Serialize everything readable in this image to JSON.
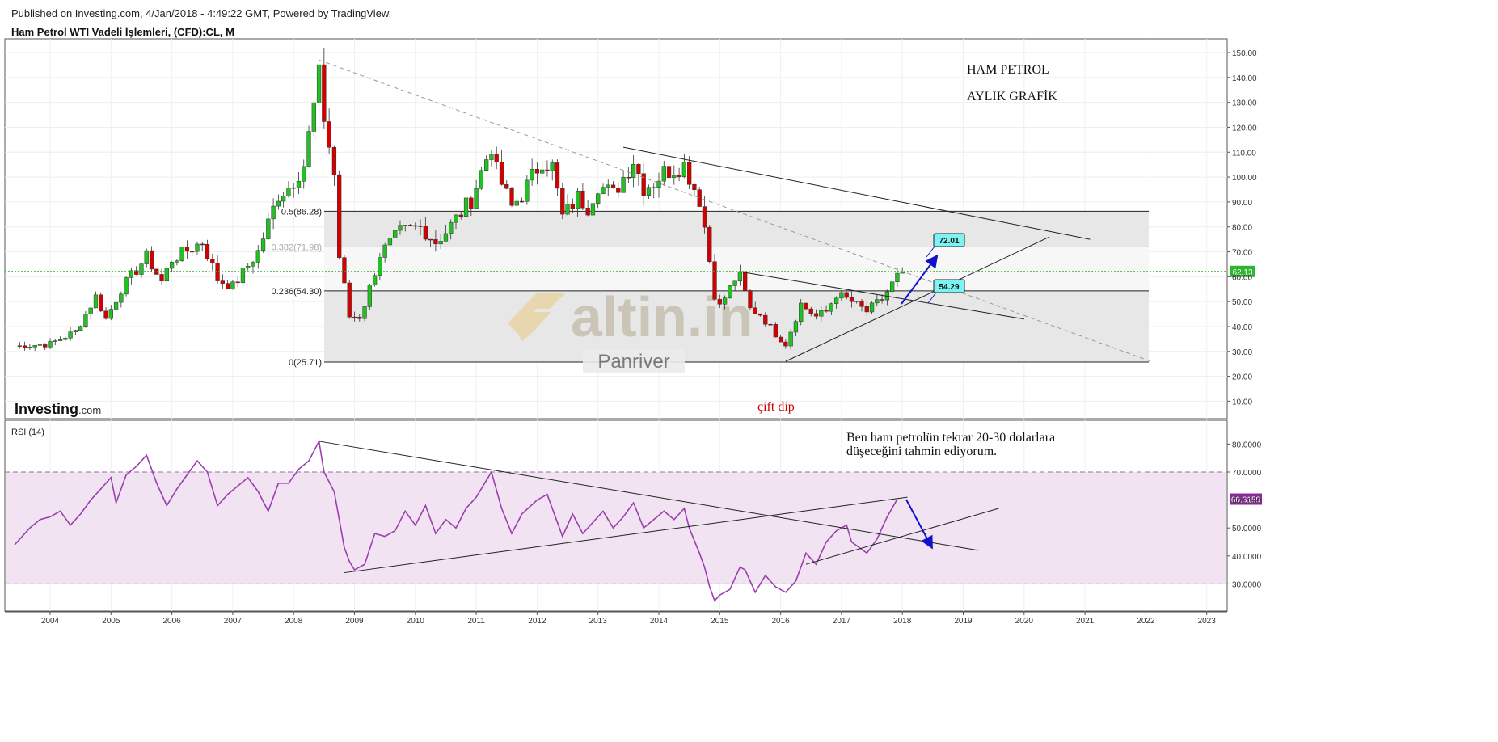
{
  "header": {
    "published": "Published on Investing.com, 4/Jan/2018 - 4:49:22 GMT, Powered by TradingView.",
    "instrument": "Ham Petrol WTI Vadeli İşlemleri, (CFD):CL, M"
  },
  "branding": {
    "investing_logo": "Investing",
    "investing_logo_suffix": ".com",
    "watermark": "altin.in",
    "watermark_sub": "Panriver"
  },
  "annotations": {
    "title_line1": "HAM PETROL",
    "title_line2": "AYLIK GRAFİK",
    "cift_dip": "çift dip",
    "rsi_note_line1": "Ben ham petrolün tekrar 20-30 dolarlara",
    "rsi_note_line2": "düşeceğini tahmin ediyorum.",
    "target_label_upper": "72.01",
    "target_label_lower": "54.29"
  },
  "colors": {
    "up_candle": "#22c022",
    "down_candle": "#d40000",
    "current_price_line": "#33aa33",
    "rsi_line": "#9b3fae",
    "rsi_band": "#f2e3f2",
    "fib_band": "#e7e7e7",
    "arrow": "#1111cc",
    "annotation_red": "#cc0000",
    "target_label_bg": "#7df4f4"
  },
  "chart_data": [
    {
      "type": "candlestick",
      "title": "Ham Petrol WTI Vadeli İşlemleri, (CFD):CL, M",
      "x_axis_labels": [
        "2004",
        "2005",
        "2006",
        "2007",
        "2008",
        "2009",
        "2010",
        "2011",
        "2012",
        "2013",
        "2014",
        "2015",
        "2016",
        "2017",
        "2018",
        "2019",
        "2020",
        "2021",
        "2022",
        "2023"
      ],
      "y_ticks": [
        "150.00",
        "140.00",
        "130.00",
        "120.00",
        "110.00",
        "100.00",
        "90.00",
        "80.00",
        "70.00",
        "60.00",
        "50.00",
        "40.00",
        "30.00",
        "20.00",
        "10.00"
      ],
      "ylim": [
        10,
        152
      ],
      "current_price": "62.13",
      "fibonacci_levels": [
        {
          "label": "0.5(86.28)",
          "value": 86.28
        },
        {
          "label": "0.382(71.98)",
          "value": 71.98
        },
        {
          "label": "0.236(54.30)",
          "value": 54.3
        },
        {
          "label": "0(25.71)",
          "value": 25.71
        }
      ],
      "close_path": [
        [
          "2003-06",
          32
        ],
        [
          "2004-01",
          33
        ],
        [
          "2004-06",
          38
        ],
        [
          "2004-10",
          52
        ],
        [
          "2004-12",
          43
        ],
        [
          "2005-03",
          55
        ],
        [
          "2005-08",
          68
        ],
        [
          "2005-11",
          58
        ],
        [
          "2006-01",
          67
        ],
        [
          "2006-07",
          74
        ],
        [
          "2006-10",
          59
        ],
        [
          "2007-01",
          56
        ],
        [
          "2007-06",
          70
        ],
        [
          "2007-10",
          93
        ],
        [
          "2007-12",
          96
        ],
        [
          "2008-03",
          105
        ],
        [
          "2008-06",
          140
        ],
        [
          "2008-07",
          124
        ],
        [
          "2008-09",
          101
        ],
        [
          "2008-10",
          68
        ],
        [
          "2008-12",
          44
        ],
        [
          "2009-02",
          44
        ],
        [
          "2009-03",
          49
        ],
        [
          "2009-06",
          69
        ],
        [
          "2009-10",
          78
        ],
        [
          "2010-02",
          80
        ],
        [
          "2010-05",
          74
        ],
        [
          "2010-07",
          78
        ],
        [
          "2010-12",
          91
        ],
        [
          "2011-04",
          113
        ],
        [
          "2011-05",
          102
        ],
        [
          "2011-08",
          88
        ],
        [
          "2011-10",
          93
        ],
        [
          "2012-02",
          107
        ],
        [
          "2012-04",
          104
        ],
        [
          "2012-06",
          84
        ],
        [
          "2012-09",
          92
        ],
        [
          "2012-11",
          88
        ],
        [
          "2013-01",
          97
        ],
        [
          "2013-04",
          93
        ],
        [
          "2013-08",
          107
        ],
        [
          "2013-10",
          96
        ],
        [
          "2013-12",
          98
        ],
        [
          "2014-02",
          102
        ],
        [
          "2014-06",
          105
        ],
        [
          "2014-09",
          91
        ],
        [
          "2014-10",
          80
        ],
        [
          "2014-12",
          53
        ],
        [
          "2015-01",
          48
        ],
        [
          "2015-04",
          59
        ],
        [
          "2015-05",
          60
        ],
        [
          "2015-07",
          47
        ],
        [
          "2015-09",
          45
        ],
        [
          "2015-12",
          37
        ],
        [
          "2016-02",
          33
        ],
        [
          "2016-05",
          49
        ],
        [
          "2016-08",
          44
        ],
        [
          "2016-10",
          46
        ],
        [
          "2016-12",
          53
        ],
        [
          "2017-03",
          50
        ],
        [
          "2017-06",
          46
        ],
        [
          "2017-09",
          51
        ],
        [
          "2017-12",
          60
        ],
        [
          "2018-01",
          62
        ]
      ],
      "trendlines": [
        {
          "from": [
            "2008-06",
            147
          ],
          "to": [
            "2022-02",
            26
          ],
          "style": "dashed"
        },
        {
          "from": [
            "2013-06",
            112
          ],
          "to": [
            "2021-02",
            75
          ],
          "style": "solid"
        },
        {
          "from": [
            "2015-05",
            62
          ],
          "to": [
            "2020-01",
            43
          ],
          "style": "solid"
        },
        {
          "from": [
            "2016-02",
            26
          ],
          "to": [
            "2020-06",
            76
          ],
          "style": "solid"
        }
      ]
    },
    {
      "type": "line",
      "name": "RSI (14)",
      "current_value": "60.3159",
      "y_ticks": [
        "80.0000",
        "70.0000",
        "60.0000",
        "50.0000",
        "40.0000",
        "30.0000"
      ],
      "ylim": [
        20,
        85
      ],
      "bands": [
        30,
        70
      ],
      "values": [
        [
          "2003-06",
          44
        ],
        [
          "2003-09",
          50
        ],
        [
          "2003-11",
          53
        ],
        [
          "2004-01",
          54
        ],
        [
          "2004-03",
          56
        ],
        [
          "2004-05",
          51
        ],
        [
          "2004-07",
          55
        ],
        [
          "2004-09",
          60
        ],
        [
          "2004-11",
          64
        ],
        [
          "2005-01",
          68
        ],
        [
          "2005-02",
          59
        ],
        [
          "2005-04",
          69
        ],
        [
          "2005-06",
          72
        ],
        [
          "2005-08",
          76
        ],
        [
          "2005-10",
          66
        ],
        [
          "2005-12",
          58
        ],
        [
          "2006-02",
          64
        ],
        [
          "2006-04",
          69
        ],
        [
          "2006-06",
          74
        ],
        [
          "2006-08",
          70
        ],
        [
          "2006-10",
          58
        ],
        [
          "2006-12",
          62
        ],
        [
          "2007-02",
          65
        ],
        [
          "2007-04",
          68
        ],
        [
          "2007-06",
          63
        ],
        [
          "2007-08",
          56
        ],
        [
          "2007-10",
          66
        ],
        [
          "2007-12",
          66
        ],
        [
          "2008-02",
          71
        ],
        [
          "2008-04",
          74
        ],
        [
          "2008-06",
          81
        ],
        [
          "2008-07",
          70
        ],
        [
          "2008-09",
          63
        ],
        [
          "2008-11",
          43
        ],
        [
          "2008-12",
          38
        ],
        [
          "2009-01",
          35
        ],
        [
          "2009-03",
          37
        ],
        [
          "2009-05",
          48
        ],
        [
          "2009-07",
          47
        ],
        [
          "2009-09",
          49
        ],
        [
          "2009-11",
          56
        ],
        [
          "2010-01",
          51
        ],
        [
          "2010-03",
          58
        ],
        [
          "2010-05",
          48
        ],
        [
          "2010-07",
          53
        ],
        [
          "2010-09",
          50
        ],
        [
          "2010-11",
          57
        ],
        [
          "2011-01",
          61
        ],
        [
          "2011-03",
          67
        ],
        [
          "2011-04",
          70
        ],
        [
          "2011-06",
          57
        ],
        [
          "2011-08",
          48
        ],
        [
          "2011-10",
          55
        ],
        [
          "2012-01",
          60
        ],
        [
          "2012-03",
          62
        ],
        [
          "2012-05",
          52
        ],
        [
          "2012-06",
          47
        ],
        [
          "2012-08",
          55
        ],
        [
          "2012-10",
          48
        ],
        [
          "2012-12",
          52
        ],
        [
          "2013-02",
          56
        ],
        [
          "2013-04",
          50
        ],
        [
          "2013-06",
          54
        ],
        [
          "2013-08",
          59
        ],
        [
          "2013-10",
          50
        ],
        [
          "2013-12",
          53
        ],
        [
          "2014-02",
          56
        ],
        [
          "2014-04",
          53
        ],
        [
          "2014-06",
          57
        ],
        [
          "2014-07",
          50
        ],
        [
          "2014-09",
          41
        ],
        [
          "2014-10",
          36
        ],
        [
          "2014-11",
          29
        ],
        [
          "2014-12",
          24
        ],
        [
          "2015-01",
          26
        ],
        [
          "2015-03",
          28
        ],
        [
          "2015-05",
          36
        ],
        [
          "2015-06",
          35
        ],
        [
          "2015-08",
          27
        ],
        [
          "2015-10",
          33
        ],
        [
          "2015-12",
          29
        ],
        [
          "2016-02",
          27
        ],
        [
          "2016-04",
          31
        ],
        [
          "2016-06",
          41
        ],
        [
          "2016-08",
          37
        ],
        [
          "2016-10",
          45
        ],
        [
          "2016-12",
          49
        ],
        [
          "2017-02",
          51
        ],
        [
          "2017-03",
          45
        ],
        [
          "2017-06",
          41
        ],
        [
          "2017-08",
          46
        ],
        [
          "2017-10",
          54
        ],
        [
          "2017-12",
          60.3
        ]
      ],
      "trendlines": [
        {
          "from": [
            "2008-06",
            81
          ],
          "to": [
            "2019-04",
            42
          ],
          "style": "solid"
        },
        {
          "from": [
            "2008-11",
            34
          ],
          "to": [
            "2018-02",
            61
          ],
          "style": "solid"
        },
        {
          "from": [
            "2016-06",
            37
          ],
          "to": [
            "2019-08",
            57
          ],
          "style": "solid"
        }
      ]
    }
  ]
}
